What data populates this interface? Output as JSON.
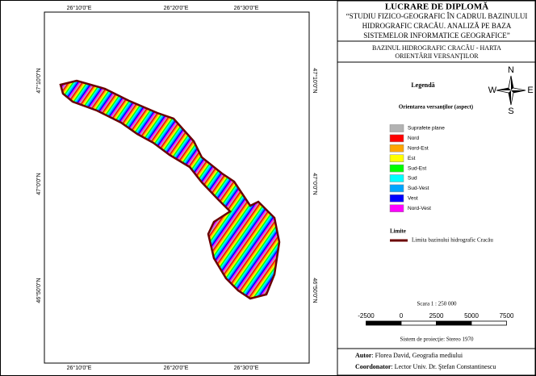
{
  "map": {
    "lon_labels": [
      "26°10'0\"E",
      "26°20'0\"E",
      "26°30'0\"E"
    ],
    "lat_labels": [
      "47°10'0\"N",
      "47°0'0\"N",
      "46°50'0\"N"
    ]
  },
  "header": {
    "title": "LUCRARE DE DIPLOMĂ",
    "subtitle": [
      "“STUDIU FIZICO-GEOGRAFIC  ÎN CADRUL BAZINULUI",
      "HIDROGRAFIC CRACĂU.  ANALIZĂ PE BAZA",
      "SISTEMELOR INFORMATICE GEOGRAFICE”"
    ]
  },
  "map_title": [
    "BAZINUL HIDROGRAFIC CRACĂU - HARTA",
    "ORIENTĂRII VERSANŢILOR"
  ],
  "compass": {
    "n": "N",
    "e": "E",
    "s": "S",
    "w": "W"
  },
  "legend": {
    "title": "Legendă",
    "subtitle": "Orientarea versanţilor (aspect)",
    "items": [
      {
        "label": "Suprafete plane",
        "color": "#b2b2b2"
      },
      {
        "label": "Nord",
        "color": "#ff0000"
      },
      {
        "label": "Nord-Est",
        "color": "#ffa500"
      },
      {
        "label": "Est",
        "color": "#ffff00"
      },
      {
        "label": "Sud-Est",
        "color": "#00ff00"
      },
      {
        "label": "Sud",
        "color": "#00ffff"
      },
      {
        "label": "Sud-Vest",
        "color": "#00a5ff"
      },
      {
        "label": "Vest",
        "color": "#0000ff"
      },
      {
        "label": "Nord-Vest",
        "color": "#ff00ff"
      }
    ],
    "limits_title": "Limite",
    "limit": {
      "label": "Limita  bazinului hidrografic Cracău",
      "color": "#6b0000"
    }
  },
  "scale": {
    "text": "Scara 1 : 250 000",
    "ticks": [
      -2500,
      0,
      2500,
      5000,
      7500
    ],
    "projection": "Sistem de proiecţie: Stereo 1970"
  },
  "footer": {
    "author_label": "Autor",
    "author": ":  Florea David, Geografia mediului",
    "coordinator_label": "Coordonator",
    "coordinator": ": Lector Univ. Dr. Ştefan  Constantinescu"
  }
}
